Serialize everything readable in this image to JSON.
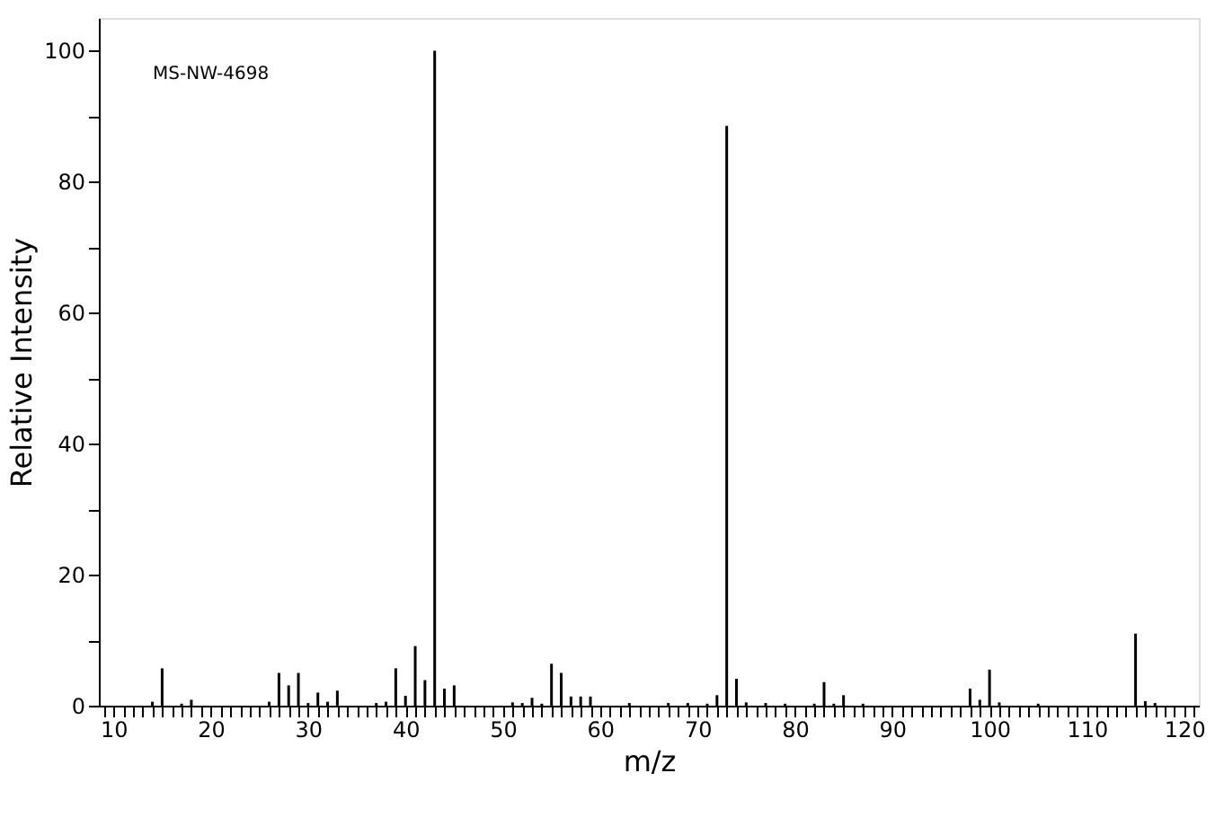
{
  "chart_data": {
    "type": "bar",
    "xlabel": "m/z",
    "ylabel": "Relative Intensity",
    "annotations": [
      "MS-NW-4698"
    ],
    "x": [
      14,
      15,
      17,
      18,
      26,
      27,
      28,
      29,
      30,
      31,
      32,
      33,
      37,
      38,
      39,
      40,
      41,
      42,
      43,
      44,
      45,
      51,
      52,
      53,
      54,
      55,
      56,
      57,
      58,
      59,
      63,
      67,
      69,
      71,
      72,
      73,
      74,
      75,
      77,
      79,
      82,
      83,
      84,
      85,
      87,
      98,
      99,
      100,
      101,
      105,
      115,
      116,
      117
    ],
    "values": [
      0.6,
      5.7,
      0.3,
      0.9,
      0.6,
      5.0,
      3.1,
      5.0,
      0.4,
      2.0,
      0.6,
      2.3,
      0.4,
      0.6,
      5.7,
      1.5,
      9.1,
      3.9,
      100,
      2.6,
      3.1,
      0.5,
      0.4,
      1.2,
      0.3,
      6.4,
      5.0,
      1.4,
      1.4,
      1.4,
      0.4,
      0.4,
      0.4,
      0.3,
      1.6,
      88.5,
      4.1,
      0.5,
      0.4,
      0.3,
      0.3,
      3.6,
      0.3,
      1.6,
      0.3,
      2.6,
      0.9,
      5.5,
      0.5,
      0.3,
      11.0,
      0.7,
      0.4
    ],
    "color": "#000000",
    "xlim": [
      8.5,
      121.5
    ],
    "ylim": [
      0,
      105
    ],
    "xticks": [
      {
        "value": 9,
        "label": null
      },
      10,
      {
        "value": 11,
        "label": null
      },
      {
        "value": 12,
        "label": null
      },
      {
        "value": 13,
        "label": null
      },
      {
        "value": 14,
        "label": null
      },
      {
        "value": 15,
        "label": null
      },
      {
        "value": 16,
        "label": null
      },
      {
        "value": 17,
        "label": null
      },
      {
        "value": 18,
        "label": null
      },
      {
        "value": 19,
        "label": null
      },
      20,
      {
        "value": 21,
        "label": null
      },
      {
        "value": 22,
        "label": null
      },
      {
        "value": 23,
        "label": null
      },
      {
        "value": 24,
        "label": null
      },
      {
        "value": 25,
        "label": null
      },
      {
        "value": 26,
        "label": null
      },
      {
        "value": 27,
        "label": null
      },
      {
        "value": 28,
        "label": null
      },
      {
        "value": 29,
        "label": null
      },
      30,
      {
        "value": 31,
        "label": null
      },
      {
        "value": 32,
        "label": null
      },
      {
        "value": 33,
        "label": null
      },
      {
        "value": 34,
        "label": null
      },
      {
        "value": 35,
        "label": null
      },
      {
        "value": 36,
        "label": null
      },
      {
        "value": 37,
        "label": null
      },
      {
        "value": 38,
        "label": null
      },
      {
        "value": 39,
        "label": null
      },
      40,
      {
        "value": 41,
        "label": null
      },
      {
        "value": 42,
        "label": null
      },
      {
        "value": 43,
        "label": null
      },
      {
        "value": 44,
        "label": null
      },
      {
        "value": 45,
        "label": null
      },
      {
        "value": 46,
        "label": null
      },
      {
        "value": 47,
        "label": null
      },
      {
        "value": 48,
        "label": null
      },
      {
        "value": 49,
        "label": null
      },
      50,
      {
        "value": 51,
        "label": null
      },
      {
        "value": 52,
        "label": null
      },
      {
        "value": 53,
        "label": null
      },
      {
        "value": 54,
        "label": null
      },
      {
        "value": 55,
        "label": null
      },
      {
        "value": 56,
        "label": null
      },
      {
        "value": 57,
        "label": null
      },
      {
        "value": 58,
        "label": null
      },
      {
        "value": 59,
        "label": null
      },
      60,
      {
        "value": 61,
        "label": null
      },
      {
        "value": 62,
        "label": null
      },
      {
        "value": 63,
        "label": null
      },
      {
        "value": 64,
        "label": null
      },
      {
        "value": 65,
        "label": null
      },
      {
        "value": 66,
        "label": null
      },
      {
        "value": 67,
        "label": null
      },
      {
        "value": 68,
        "label": null
      },
      {
        "value": 69,
        "label": null
      },
      70,
      {
        "value": 71,
        "label": null
      },
      {
        "value": 72,
        "label": null
      },
      {
        "value": 73,
        "label": null
      },
      {
        "value": 74,
        "label": null
      },
      {
        "value": 75,
        "label": null
      },
      {
        "value": 76,
        "label": null
      },
      {
        "value": 77,
        "label": null
      },
      {
        "value": 78,
        "label": null
      },
      {
        "value": 79,
        "label": null
      },
      80,
      {
        "value": 81,
        "label": null
      },
      {
        "value": 82,
        "label": null
      },
      {
        "value": 83,
        "label": null
      },
      {
        "value": 84,
        "label": null
      },
      {
        "value": 85,
        "label": null
      },
      {
        "value": 86,
        "label": null
      },
      {
        "value": 87,
        "label": null
      },
      {
        "value": 88,
        "label": null
      },
      {
        "value": 89,
        "label": null
      },
      90,
      {
        "value": 91,
        "label": null
      },
      {
        "value": 92,
        "label": null
      },
      {
        "value": 93,
        "label": null
      },
      {
        "value": 94,
        "label": null
      },
      {
        "value": 95,
        "label": null
      },
      {
        "value": 96,
        "label": null
      },
      {
        "value": 97,
        "label": null
      },
      {
        "value": 98,
        "label": null
      },
      {
        "value": 99,
        "label": null
      },
      100,
      {
        "value": 101,
        "label": null
      },
      {
        "value": 102,
        "label": null
      },
      {
        "value": 103,
        "label": null
      },
      {
        "value": 104,
        "label": null
      },
      {
        "value": 105,
        "label": null
      },
      {
        "value": 106,
        "label": null
      },
      {
        "value": 107,
        "label": null
      },
      {
        "value": 108,
        "label": null
      },
      {
        "value": 109,
        "label": null
      },
      110,
      {
        "value": 111,
        "label": null
      },
      {
        "value": 112,
        "label": null
      },
      {
        "value": 113,
        "label": null
      },
      {
        "value": 114,
        "label": null
      },
      {
        "value": 115,
        "label": null
      },
      {
        "value": 116,
        "label": null
      },
      {
        "value": 117,
        "label": null
      },
      {
        "value": 118,
        "label": null
      },
      {
        "value": 119,
        "label": null
      },
      120,
      {
        "value": 121,
        "label": null
      }
    ],
    "yticks": [
      0,
      {
        "value": 10,
        "label": null
      },
      20,
      {
        "value": 30,
        "label": null
      },
      40,
      {
        "value": 50,
        "label": null
      },
      60,
      {
        "value": 70,
        "label": null
      },
      80,
      {
        "value": 90,
        "label": null
      },
      100
    ],
    "grid": false
  }
}
